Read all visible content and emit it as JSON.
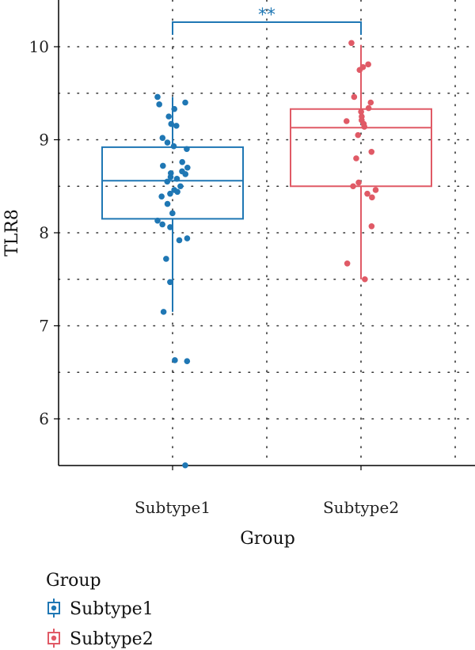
{
  "chart_data": {
    "type": "box",
    "xlabel": "Group",
    "ylabel": "TLR8",
    "ylim": [
      5.5,
      10.5
    ],
    "yticks": [
      6,
      7,
      8,
      9,
      10
    ],
    "grid": "dotted",
    "categories": [
      "Subtype1",
      "Subtype2"
    ],
    "series": [
      {
        "name": "Subtype1",
        "color": "#1f77b4",
        "box": {
          "q1": 8.15,
          "median": 8.56,
          "q3": 8.92,
          "whisker_low": 7.15,
          "whisker_high": 9.46
        },
        "points": [
          9.46,
          9.4,
          9.38,
          9.33,
          9.25,
          9.17,
          9.15,
          9.02,
          8.97,
          8.93,
          8.9,
          8.76,
          8.72,
          8.7,
          8.66,
          8.64,
          8.63,
          8.6,
          8.58,
          8.55,
          8.5,
          8.46,
          8.44,
          8.42,
          8.39,
          8.31,
          8.21,
          8.13,
          8.09,
          8.06,
          7.94,
          7.92,
          7.72,
          7.47,
          7.15,
          6.63,
          6.62,
          5.5
        ]
      },
      {
        "name": "Subtype2",
        "color": "#e05a66",
        "box": {
          "q1": 8.5,
          "median": 9.13,
          "q3": 9.33,
          "whisker_low": 7.5,
          "whisker_high": 10.02
        },
        "points": [
          10.04,
          9.81,
          9.78,
          9.75,
          9.46,
          9.4,
          9.34,
          9.3,
          9.25,
          9.21,
          9.2,
          9.17,
          9.14,
          9.05,
          8.87,
          8.8,
          8.54,
          8.5,
          8.46,
          8.42,
          8.38,
          8.07,
          7.67,
          7.5
        ]
      }
    ],
    "significance": {
      "label": "**",
      "between": [
        "Subtype1",
        "Subtype2"
      ],
      "color": "#1f77b4"
    },
    "legend": {
      "title": "Group",
      "position": "bottom-left",
      "items": [
        "Subtype1",
        "Subtype2"
      ]
    }
  }
}
